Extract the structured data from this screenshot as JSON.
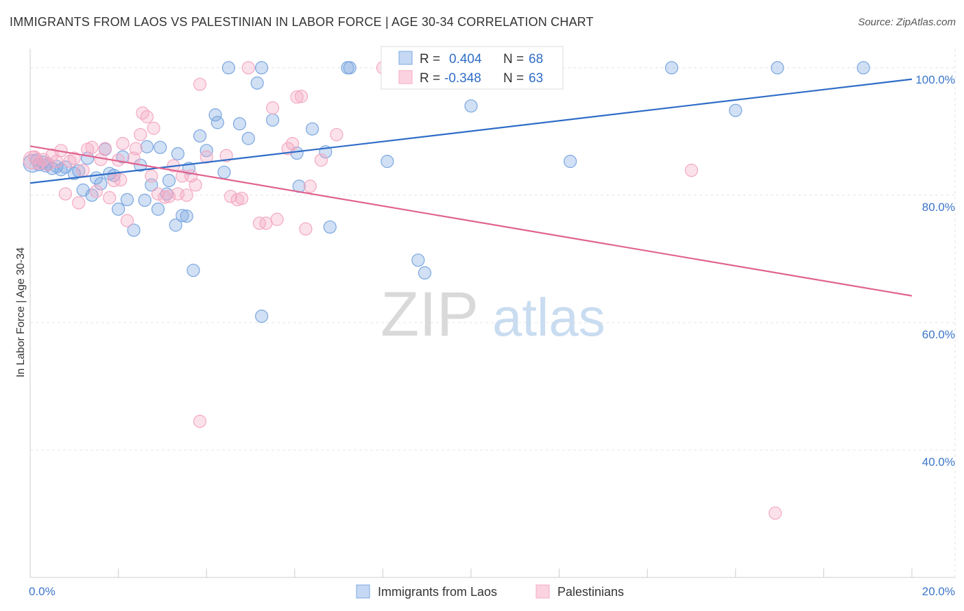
{
  "chart_data": {
    "type": "scatter",
    "title": "IMMIGRANTS FROM LAOS VS PALESTINIAN IN LABOR FORCE | AGE 30-34 CORRELATION CHART",
    "source": "Source: ZipAtlas.com",
    "xlabel": "",
    "ylabel": "In Labor Force | Age 30-34",
    "xlim": [
      0,
      20
    ],
    "ylim": [
      20,
      103
    ],
    "x_tick_labels": [
      {
        "value": 0,
        "label": "0.0%"
      },
      {
        "value": 20,
        "label": "20.0%"
      }
    ],
    "y_tick_labels": [
      {
        "value": 100,
        "label": "100.0%"
      },
      {
        "value": 80,
        "label": "80.0%"
      },
      {
        "value": 60,
        "label": "60.0%"
      },
      {
        "value": 40,
        "label": "40.0%"
      }
    ],
    "watermark": {
      "part1": "ZIP",
      "part2": "atlas"
    },
    "legend_position": "top-center",
    "series": [
      {
        "name": "Immigrants from Laos",
        "color": "#7aa6e0",
        "line_color": "#2e6cc7",
        "R": "0.404",
        "N": "68",
        "r_label": "R =",
        "n_label": "N =",
        "trend": {
          "x0": 0,
          "y0": 81.9,
          "x1": 20,
          "y1": 98.2
        },
        "points": [
          [
            0.05,
            85
          ],
          [
            0.15,
            85.5
          ],
          [
            0.2,
            84.8
          ],
          [
            0.3,
            85.2
          ],
          [
            0.4,
            84.9
          ],
          [
            0.5,
            84.2
          ],
          [
            0.6,
            84.5
          ],
          [
            0.7,
            84
          ],
          [
            0.8,
            84.4
          ],
          [
            1.0,
            83.4
          ],
          [
            1.1,
            83.8
          ],
          [
            1.2,
            80.8
          ],
          [
            1.3,
            85.8
          ],
          [
            1.4,
            80
          ],
          [
            1.5,
            82.7
          ],
          [
            1.7,
            87.2
          ],
          [
            1.6,
            81.8
          ],
          [
            1.8,
            83.4
          ],
          [
            1.9,
            83.1
          ],
          [
            2.1,
            86
          ],
          [
            2.0,
            77.8
          ],
          [
            2.2,
            79.3
          ],
          [
            2.35,
            74.5
          ],
          [
            2.5,
            84.7
          ],
          [
            2.6,
            79.2
          ],
          [
            2.65,
            87.6
          ],
          [
            2.75,
            81.6
          ],
          [
            2.9,
            77.8
          ],
          [
            2.95,
            87.5
          ],
          [
            3.1,
            80.2
          ],
          [
            3.15,
            82.3
          ],
          [
            3.3,
            75.3
          ],
          [
            3.35,
            86.5
          ],
          [
            3.45,
            76.8
          ],
          [
            3.55,
            76.7
          ],
          [
            3.6,
            84.2
          ],
          [
            3.7,
            68.2
          ],
          [
            3.85,
            89.3
          ],
          [
            4.0,
            87
          ],
          [
            4.2,
            92.6
          ],
          [
            4.25,
            91.4
          ],
          [
            4.4,
            83.6
          ],
          [
            4.75,
            91.2
          ],
          [
            4.95,
            88.9
          ],
          [
            5.15,
            97.6
          ],
          [
            5.25,
            100
          ],
          [
            5.5,
            91.8
          ],
          [
            5.25,
            61
          ],
          [
            6.05,
            86.6
          ],
          [
            6.1,
            81.4
          ],
          [
            6.4,
            90.4
          ],
          [
            6.7,
            86.8
          ],
          [
            6.8,
            75
          ],
          [
            7.2,
            100
          ],
          [
            7.25,
            100
          ],
          [
            8.1,
            85.3
          ],
          [
            8.8,
            69.8
          ],
          [
            8.95,
            67.8
          ],
          [
            8.95,
            100
          ],
          [
            9.2,
            100
          ],
          [
            10.0,
            94
          ],
          [
            12.25,
            85.3
          ],
          [
            14.55,
            100
          ],
          [
            16.0,
            93.3
          ],
          [
            16.95,
            100
          ],
          [
            18.9,
            100
          ],
          [
            4.5,
            100
          ],
          [
            0.35,
            84.6
          ]
        ]
      },
      {
        "name": "Palestinians",
        "color": "#f4a8c2",
        "line_color": "#e0628f",
        "R": "-0.348",
        "N": "63",
        "r_label": "R =",
        "n_label": "N =",
        "trend": {
          "x0": 0,
          "y0": 87.7,
          "x1": 20,
          "y1": 64.2
        },
        "points": [
          [
            0.05,
            85.5
          ],
          [
            0.1,
            86
          ],
          [
            0.2,
            85
          ],
          [
            0.3,
            85.6
          ],
          [
            0.4,
            84.8
          ],
          [
            0.5,
            86.3
          ],
          [
            0.6,
            85.3
          ],
          [
            0.7,
            87
          ],
          [
            0.8,
            80.2
          ],
          [
            0.9,
            85.3
          ],
          [
            1.0,
            85.8
          ],
          [
            1.1,
            78.8
          ],
          [
            1.2,
            83.9
          ],
          [
            1.3,
            87.2
          ],
          [
            1.4,
            87.5
          ],
          [
            1.5,
            80.6
          ],
          [
            1.6,
            85.6
          ],
          [
            1.7,
            87.3
          ],
          [
            1.8,
            79.6
          ],
          [
            1.9,
            82.3
          ],
          [
            2.0,
            85.5
          ],
          [
            2.05,
            82.4
          ],
          [
            2.1,
            88.1
          ],
          [
            2.2,
            76
          ],
          [
            2.35,
            85.8
          ],
          [
            2.4,
            87.3
          ],
          [
            2.5,
            89.5
          ],
          [
            2.55,
            92.9
          ],
          [
            2.65,
            92.3
          ],
          [
            2.75,
            83
          ],
          [
            2.8,
            90.5
          ],
          [
            2.9,
            80.2
          ],
          [
            3.05,
            79.7
          ],
          [
            3.15,
            79.8
          ],
          [
            3.25,
            84.6
          ],
          [
            3.35,
            80.2
          ],
          [
            3.45,
            83
          ],
          [
            3.55,
            80
          ],
          [
            3.65,
            83
          ],
          [
            3.75,
            81.6
          ],
          [
            3.85,
            97.4
          ],
          [
            4.0,
            86
          ],
          [
            4.45,
            86.2
          ],
          [
            4.55,
            79.8
          ],
          [
            4.7,
            79.3
          ],
          [
            4.8,
            79.5
          ],
          [
            4.95,
            100
          ],
          [
            5.2,
            75.6
          ],
          [
            5.35,
            75.6
          ],
          [
            5.5,
            93.7
          ],
          [
            5.6,
            76.2
          ],
          [
            5.85,
            87.3
          ],
          [
            5.95,
            88.1
          ],
          [
            6.05,
            95.4
          ],
          [
            6.15,
            95.5
          ],
          [
            6.25,
            74.7
          ],
          [
            6.35,
            81.4
          ],
          [
            6.6,
            85.5
          ],
          [
            6.95,
            89.5
          ],
          [
            8.0,
            100
          ],
          [
            15.0,
            83.9
          ],
          [
            16.9,
            30.1
          ],
          [
            3.85,
            44.5
          ]
        ]
      }
    ]
  }
}
